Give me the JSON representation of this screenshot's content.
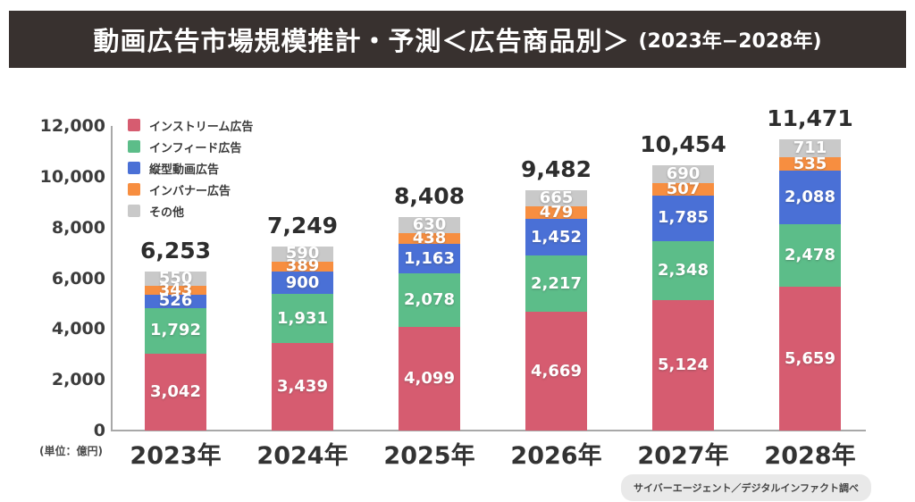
{
  "header": {
    "title": "動画広告市場規模推計・予測＜広告商品別＞",
    "range": "(2023年−2028年)"
  },
  "unit_note": "(単位：億円)",
  "source_note": "サイバーエージェント／デジタルインファクト調べ",
  "colors": {
    "title_bar": "#38312f",
    "axis_line": "#a8a8a8",
    "instream": "#d65c70",
    "infeed": "#5cbd89",
    "vertical_video": "#4a70d6",
    "inbanner": "#f78e40",
    "other": "#c9c9c9"
  },
  "chart_data": {
    "type": "bar",
    "stacked": true,
    "title": "動画広告市場規模推計・予測＜広告商品別＞(2023年−2028年)",
    "categories": [
      "2023年",
      "2024年",
      "2025年",
      "2026年",
      "2027年",
      "2028年"
    ],
    "series": [
      {
        "key": "instream",
        "name": "インストリーム広告",
        "color": "#d65c70",
        "values": [
          3042,
          3439,
          4099,
          4669,
          5124,
          5659
        ]
      },
      {
        "key": "infeed",
        "name": "インフィード広告",
        "color": "#5cbd89",
        "values": [
          1792,
          1931,
          2078,
          2217,
          2348,
          2478
        ]
      },
      {
        "key": "vertical-video",
        "name": "縦型動画広告",
        "color": "#4a70d6",
        "values": [
          526,
          900,
          1163,
          1452,
          1785,
          2088
        ]
      },
      {
        "key": "inbanner",
        "name": "インバナー広告",
        "color": "#f78e40",
        "values": [
          343,
          389,
          438,
          479,
          507,
          535
        ]
      },
      {
        "key": "other",
        "name": "その他",
        "color": "#c9c9c9",
        "values": [
          550,
          590,
          630,
          665,
          690,
          711
        ]
      }
    ],
    "totals": [
      6253,
      7249,
      8408,
      9482,
      10454,
      11471
    ],
    "ylabel": "(単位：億円)",
    "ylim": [
      0,
      12000
    ],
    "y_ticks": [
      0,
      2000,
      4000,
      6000,
      8000,
      10000,
      12000
    ],
    "grid": false,
    "legend_position": "top-left"
  }
}
